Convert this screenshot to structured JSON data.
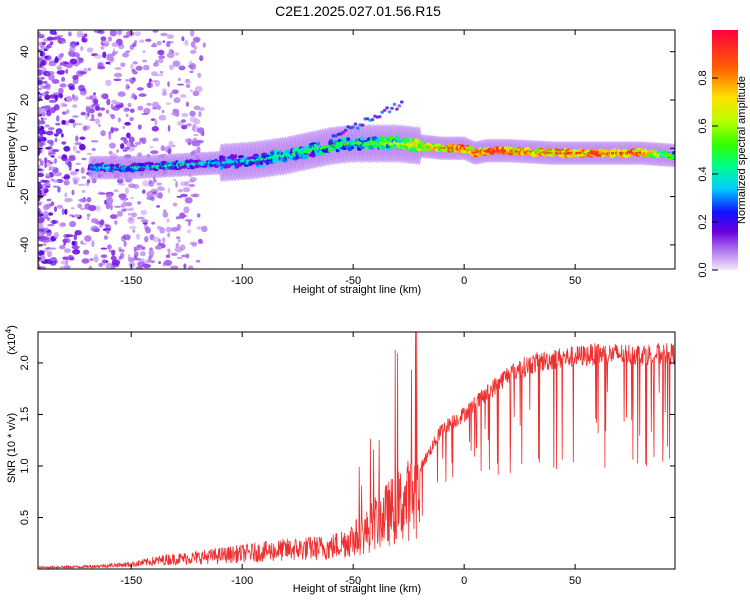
{
  "figure": {
    "title": "C2E1.2025.027.01.56.R15"
  },
  "chart_data": [
    {
      "type": "heatmap",
      "xlabel": "Height of straight line (km)",
      "ylabel": "Frequency (Hz)",
      "xlim": [
        -192,
        95
      ],
      "ylim": [
        -50,
        49
      ],
      "x_ticks": [
        -150,
        -100,
        -50,
        0,
        50
      ],
      "y_ticks": [
        -40,
        -20,
        0,
        20,
        40
      ],
      "colorbar": {
        "label": "Normalized spectral amplitude",
        "range": [
          0,
          1
        ],
        "ticks": [
          0.0,
          0.2,
          0.4,
          0.6,
          0.8
        ]
      },
      "ridge": {
        "x": [
          -165,
          -150,
          -130,
          -110,
          -95,
          -80,
          -70,
          -60,
          -50,
          -40,
          -30,
          -20,
          -10,
          0,
          5,
          10,
          20,
          40,
          60,
          80,
          95
        ],
        "center_freq": [
          -8,
          -8,
          -7,
          -6,
          -5,
          -3,
          -1,
          1,
          2,
          2,
          2,
          1,
          0,
          0,
          -2,
          -1,
          -1,
          -2,
          -2,
          -2,
          -3
        ],
        "peak_amplitude": [
          0.35,
          0.4,
          0.4,
          0.35,
          0.4,
          0.45,
          0.5,
          0.5,
          0.55,
          0.55,
          0.65,
          0.75,
          0.85,
          0.95,
          0.9,
          0.95,
          0.9,
          0.9,
          0.95,
          0.9,
          0.5
        ]
      },
      "colors": {
        "low": "#d8b8f8",
        "high": "#ff0000"
      }
    },
    {
      "type": "line",
      "xlabel": "Height of straight line (km)",
      "ylabel": "SNR (10 * v/v)",
      "y_multiplier_label": "(x10",
      "y_multiplier_exp": "4",
      "xlim": [
        -192,
        95
      ],
      "ylim": [
        0,
        2.3
      ],
      "x_ticks": [
        -150,
        -100,
        -50,
        0,
        50
      ],
      "y_ticks": [
        0.5,
        1.0,
        1.5,
        2.0
      ],
      "series": [
        {
          "color": "#ee3030",
          "envelope_x": [
            -192,
            -170,
            -150,
            -135,
            -120,
            -100,
            -80,
            -60,
            -45,
            -40,
            -30,
            -20,
            -15,
            -10,
            0,
            10,
            15,
            20,
            30,
            40,
            60,
            80,
            95
          ],
          "envelope_y": [
            0.02,
            0.03,
            0.06,
            0.12,
            0.15,
            0.2,
            0.25,
            0.28,
            0.45,
            0.6,
            0.8,
            1.0,
            1.2,
            1.4,
            1.55,
            1.75,
            1.85,
            1.95,
            2.05,
            2.1,
            2.15,
            2.15,
            2.15
          ]
        }
      ]
    }
  ]
}
